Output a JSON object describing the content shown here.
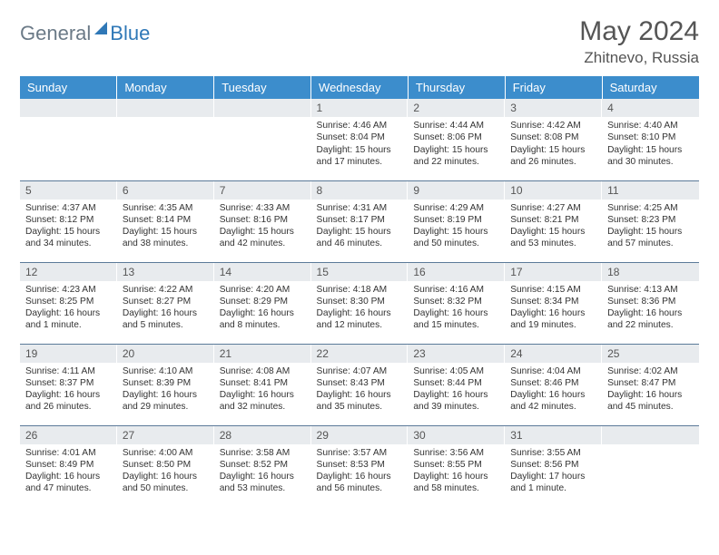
{
  "brand": {
    "part1": "General",
    "part2": "Blue"
  },
  "title": "May 2024",
  "location": "Zhitnevo, Russia",
  "colors": {
    "header_bg": "#3c8dcc",
    "header_text": "#ffffff",
    "daynum_bg": "#e8ebee",
    "row_border": "#5b7a99",
    "brand_gray": "#6b7a87",
    "brand_blue": "#2f78b7",
    "title_color": "#555555"
  },
  "weekdays": [
    "Sunday",
    "Monday",
    "Tuesday",
    "Wednesday",
    "Thursday",
    "Friday",
    "Saturday"
  ],
  "weeks": [
    [
      null,
      null,
      null,
      {
        "n": "1",
        "sr": "4:46 AM",
        "ss": "8:04 PM",
        "dl": "15 hours and 17 minutes."
      },
      {
        "n": "2",
        "sr": "4:44 AM",
        "ss": "8:06 PM",
        "dl": "15 hours and 22 minutes."
      },
      {
        "n": "3",
        "sr": "4:42 AM",
        "ss": "8:08 PM",
        "dl": "15 hours and 26 minutes."
      },
      {
        "n": "4",
        "sr": "4:40 AM",
        "ss": "8:10 PM",
        "dl": "15 hours and 30 minutes."
      }
    ],
    [
      {
        "n": "5",
        "sr": "4:37 AM",
        "ss": "8:12 PM",
        "dl": "15 hours and 34 minutes."
      },
      {
        "n": "6",
        "sr": "4:35 AM",
        "ss": "8:14 PM",
        "dl": "15 hours and 38 minutes."
      },
      {
        "n": "7",
        "sr": "4:33 AM",
        "ss": "8:16 PM",
        "dl": "15 hours and 42 minutes."
      },
      {
        "n": "8",
        "sr": "4:31 AM",
        "ss": "8:17 PM",
        "dl": "15 hours and 46 minutes."
      },
      {
        "n": "9",
        "sr": "4:29 AM",
        "ss": "8:19 PM",
        "dl": "15 hours and 50 minutes."
      },
      {
        "n": "10",
        "sr": "4:27 AM",
        "ss": "8:21 PM",
        "dl": "15 hours and 53 minutes."
      },
      {
        "n": "11",
        "sr": "4:25 AM",
        "ss": "8:23 PM",
        "dl": "15 hours and 57 minutes."
      }
    ],
    [
      {
        "n": "12",
        "sr": "4:23 AM",
        "ss": "8:25 PM",
        "dl": "16 hours and 1 minute."
      },
      {
        "n": "13",
        "sr": "4:22 AM",
        "ss": "8:27 PM",
        "dl": "16 hours and 5 minutes."
      },
      {
        "n": "14",
        "sr": "4:20 AM",
        "ss": "8:29 PM",
        "dl": "16 hours and 8 minutes."
      },
      {
        "n": "15",
        "sr": "4:18 AM",
        "ss": "8:30 PM",
        "dl": "16 hours and 12 minutes."
      },
      {
        "n": "16",
        "sr": "4:16 AM",
        "ss": "8:32 PM",
        "dl": "16 hours and 15 minutes."
      },
      {
        "n": "17",
        "sr": "4:15 AM",
        "ss": "8:34 PM",
        "dl": "16 hours and 19 minutes."
      },
      {
        "n": "18",
        "sr": "4:13 AM",
        "ss": "8:36 PM",
        "dl": "16 hours and 22 minutes."
      }
    ],
    [
      {
        "n": "19",
        "sr": "4:11 AM",
        "ss": "8:37 PM",
        "dl": "16 hours and 26 minutes."
      },
      {
        "n": "20",
        "sr": "4:10 AM",
        "ss": "8:39 PM",
        "dl": "16 hours and 29 minutes."
      },
      {
        "n": "21",
        "sr": "4:08 AM",
        "ss": "8:41 PM",
        "dl": "16 hours and 32 minutes."
      },
      {
        "n": "22",
        "sr": "4:07 AM",
        "ss": "8:43 PM",
        "dl": "16 hours and 35 minutes."
      },
      {
        "n": "23",
        "sr": "4:05 AM",
        "ss": "8:44 PM",
        "dl": "16 hours and 39 minutes."
      },
      {
        "n": "24",
        "sr": "4:04 AM",
        "ss": "8:46 PM",
        "dl": "16 hours and 42 minutes."
      },
      {
        "n": "25",
        "sr": "4:02 AM",
        "ss": "8:47 PM",
        "dl": "16 hours and 45 minutes."
      }
    ],
    [
      {
        "n": "26",
        "sr": "4:01 AM",
        "ss": "8:49 PM",
        "dl": "16 hours and 47 minutes."
      },
      {
        "n": "27",
        "sr": "4:00 AM",
        "ss": "8:50 PM",
        "dl": "16 hours and 50 minutes."
      },
      {
        "n": "28",
        "sr": "3:58 AM",
        "ss": "8:52 PM",
        "dl": "16 hours and 53 minutes."
      },
      {
        "n": "29",
        "sr": "3:57 AM",
        "ss": "8:53 PM",
        "dl": "16 hours and 56 minutes."
      },
      {
        "n": "30",
        "sr": "3:56 AM",
        "ss": "8:55 PM",
        "dl": "16 hours and 58 minutes."
      },
      {
        "n": "31",
        "sr": "3:55 AM",
        "ss": "8:56 PM",
        "dl": "17 hours and 1 minute."
      },
      null
    ]
  ],
  "labels": {
    "sunrise": "Sunrise: ",
    "sunset": "Sunset: ",
    "daylight": "Daylight: "
  }
}
